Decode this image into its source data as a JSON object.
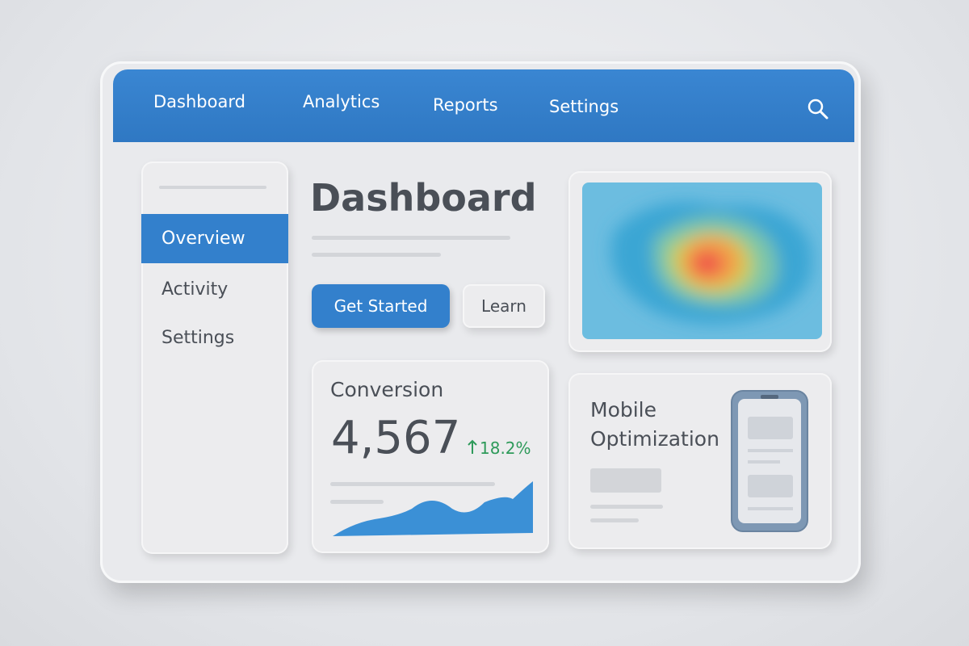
{
  "nav": {
    "items": [
      "Dashboard",
      "Analytics",
      "Reports",
      "Settings"
    ]
  },
  "sidebar": {
    "items": [
      "Overview",
      "Activity",
      "Settings"
    ]
  },
  "main": {
    "title": "Dashboard",
    "primary_button": "Get Started",
    "secondary_button": "Learn"
  },
  "conversion_card": {
    "title": "Conversion",
    "value": "4,567",
    "change": "18.2%"
  },
  "mobile_card": {
    "title_line1": "Mobile",
    "title_line2": "Optimization"
  }
}
